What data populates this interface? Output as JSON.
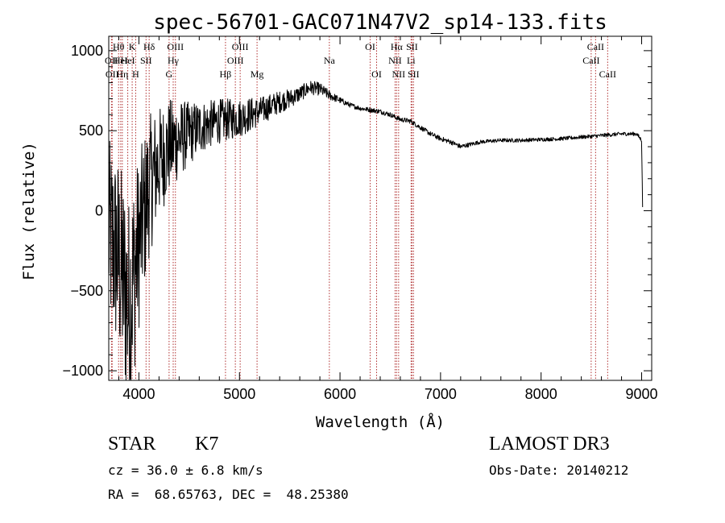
{
  "chart_data": {
    "type": "line",
    "title": "spec-56701-GAC071N47V2_sp14-133.fits",
    "xlabel": "Wavelength (Å)",
    "ylabel": "Flux (relative)",
    "xlim": [
      3700,
      9100
    ],
    "ylim": [
      -1060,
      1090
    ],
    "x_ticks": [
      4000,
      5000,
      6000,
      7000,
      8000,
      9000
    ],
    "x_tick_labels": [
      "4000",
      "5000",
      "6000",
      "7000",
      "8000",
      "9000"
    ],
    "y_ticks": [
      -1000,
      -500,
      0,
      500,
      1000
    ],
    "y_tick_labels": [
      "−1000",
      "−500",
      "0",
      "500",
      "1000"
    ],
    "grid": false,
    "series": [
      {
        "name": "flux",
        "color": "#000000",
        "x": [
          3700,
          3800,
          3900,
          3950,
          4000,
          4100,
          4200,
          4300,
          4400,
          4500,
          4600,
          4700,
          4800,
          4900,
          5000,
          5100,
          5200,
          5300,
          5400,
          5500,
          5600,
          5700,
          5800,
          5900,
          6000,
          6100,
          6200,
          6300,
          6400,
          6500,
          6600,
          6700,
          6800,
          6900,
          7000,
          7100,
          7200,
          7400,
          7600,
          7800,
          8000,
          8200,
          8400,
          8600,
          8800,
          8950,
          9000,
          9010
        ],
        "y": [
          -150,
          -300,
          -600,
          -400,
          -200,
          150,
          300,
          400,
          450,
          480,
          520,
          540,
          560,
          570,
          580,
          600,
          620,
          650,
          680,
          700,
          730,
          770,
          760,
          720,
          690,
          660,
          640,
          630,
          620,
          600,
          570,
          560,
          520,
          480,
          450,
          430,
          400,
          430,
          440,
          440,
          445,
          450,
          460,
          470,
          480,
          480,
          440,
          0
        ],
        "noise": [
          600,
          650,
          700,
          650,
          550,
          450,
          350,
          300,
          250,
          200,
          170,
          150,
          140,
          130,
          120,
          110,
          90,
          80,
          70,
          60,
          50,
          45,
          40,
          30,
          20,
          15,
          15,
          15,
          15,
          15,
          15,
          15,
          15,
          15,
          15,
          15,
          15,
          12,
          12,
          12,
          12,
          12,
          12,
          12,
          12,
          12,
          12,
          0
        ]
      }
    ],
    "lines": [
      {
        "w": 3727,
        "label": "OII",
        "row": 2
      },
      {
        "w": 3734,
        "label": "OII",
        "row": 3
      },
      {
        "w": 3798,
        "label": "Hθ",
        "row": 1
      },
      {
        "w": 3819,
        "label": "HeI",
        "row": 2
      },
      {
        "w": 3835,
        "label": "Hη",
        "row": 3
      },
      {
        "w": 3889,
        "label": "HeI",
        "row": 2
      },
      {
        "w": 3933,
        "label": "K",
        "row": 1
      },
      {
        "w": 3968,
        "label": "H",
        "row": 3
      },
      {
        "w": 4071,
        "label": "SII",
        "row": 2
      },
      {
        "w": 4102,
        "label": "Hδ",
        "row": 1
      },
      {
        "w": 4300,
        "label": "G",
        "row": 3
      },
      {
        "w": 4341,
        "label": "Hγ",
        "row": 2
      },
      {
        "w": 4363,
        "label": "OIII",
        "row": 1
      },
      {
        "w": 4861,
        "label": "Hβ",
        "row": 3
      },
      {
        "w": 4959,
        "label": "OIII",
        "row": 2
      },
      {
        "w": 5007,
        "label": "OIII",
        "row": 1
      },
      {
        "w": 5175,
        "label": "Mg",
        "row": 3
      },
      {
        "w": 5894,
        "label": "Na",
        "row": 2
      },
      {
        "w": 6300,
        "label": "OI",
        "row": 1
      },
      {
        "w": 6364,
        "label": "OI",
        "row": 3
      },
      {
        "w": 6548,
        "label": "NII",
        "row": 2
      },
      {
        "w": 6563,
        "label": "Hα",
        "row": 1
      },
      {
        "w": 6583,
        "label": "NII",
        "row": 3
      },
      {
        "w": 6707,
        "label": "Li",
        "row": 2
      },
      {
        "w": 6716,
        "label": "SII",
        "row": 1
      },
      {
        "w": 6731,
        "label": "SII",
        "row": 3
      },
      {
        "w": 8498,
        "label": "CaII",
        "row": 2
      },
      {
        "w": 8542,
        "label": "CaII",
        "row": 1
      },
      {
        "w": 8662,
        "label": "CaII",
        "row": 3
      }
    ]
  },
  "info": {
    "class": "STAR",
    "subclass": "K7",
    "survey": "LAMOST DR3",
    "cz": "cz = 36.0 ± 6.8 km/s",
    "obs_date": "Obs-Date: 20140212",
    "coords": "RA =  68.65763, DEC =  48.25380"
  }
}
